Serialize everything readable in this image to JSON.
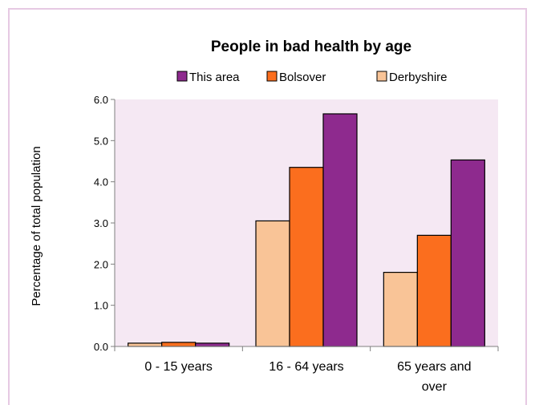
{
  "colors": {
    "plot_background": "#f5e8f3",
    "frame_border": "#e6c9e3",
    "axis": "#7f7f7f",
    "this_area": "#8e2a8e",
    "bolsover": "#fb6e1e",
    "derbyshire": "#f9c497"
  },
  "chart_data": {
    "type": "bar",
    "title": "People in bad health by age",
    "ylabel": "Percentage of total population",
    "xlabel": "",
    "ylim": [
      0,
      6.0
    ],
    "yticks": [
      "0.0",
      "1.0",
      "2.0",
      "3.0",
      "4.0",
      "5.0",
      "6.0"
    ],
    "grid": false,
    "legend_position": "top",
    "legend": [
      "This area",
      "Bolsover",
      "Derbyshire"
    ],
    "categories": [
      [
        "0 - 15 years"
      ],
      [
        "16 - 64 years"
      ],
      [
        "65 years and",
        "over"
      ]
    ],
    "series": [
      {
        "name": "Derbyshire",
        "color": "#f9c497",
        "values": [
          0.08,
          3.05,
          1.8
        ]
      },
      {
        "name": "Bolsover",
        "color": "#fb6e1e",
        "values": [
          0.1,
          4.35,
          2.7
        ]
      },
      {
        "name": "This area",
        "color": "#8e2a8e",
        "values": [
          0.08,
          5.65,
          4.53
        ]
      }
    ]
  }
}
